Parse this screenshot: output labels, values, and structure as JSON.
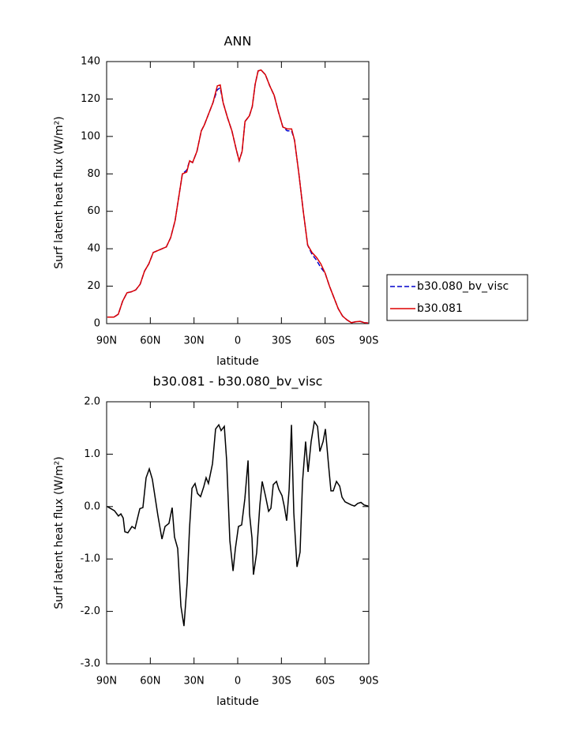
{
  "chart_data": [
    {
      "type": "line",
      "title": "ANN",
      "xlabel": "latitude",
      "ylabel": "Surf latent heat flux (W/m²)",
      "xlim": [
        90,
        -90
      ],
      "xticks": [
        {
          "value": 90,
          "label": "90N"
        },
        {
          "value": 60,
          "label": "60N"
        },
        {
          "value": 30,
          "label": "30N"
        },
        0,
        {
          "value": -30,
          "label": "30S"
        },
        {
          "value": -60,
          "label": "60S"
        },
        {
          "value": -90,
          "label": "90S"
        }
      ],
      "ylim": [
        0,
        140
      ],
      "yticks": [
        0,
        20,
        40,
        60,
        80,
        100,
        120,
        140
      ],
      "legend": "right",
      "x": [
        89.5,
        85,
        82,
        79,
        76,
        73,
        70,
        67,
        64,
        61,
        58,
        55,
        52,
        49,
        46,
        43,
        40,
        38,
        35,
        33,
        31,
        28,
        25,
        23,
        20,
        17,
        14,
        12,
        10,
        7,
        4,
        1,
        -1,
        -3,
        -5,
        -8,
        -10,
        -12,
        -14,
        -16,
        -19,
        -22,
        -25,
        -28,
        -31,
        -34,
        -37,
        -39,
        -42,
        -45,
        -48,
        -51,
        -54,
        -57,
        -60,
        -63,
        -66,
        -69,
        -72,
        -75,
        -78,
        -81,
        -84,
        -87,
        -89.5
      ],
      "series": [
        {
          "name": "b30.080_bv_visc",
          "color": "#0000cc",
          "dash": true,
          "values": [
            3.5,
            3.5,
            5,
            12,
            16.5,
            17,
            18,
            21,
            28,
            32,
            38,
            39,
            40,
            41,
            46,
            55,
            70,
            80,
            82,
            87,
            86,
            92,
            103,
            106,
            112,
            118,
            125,
            126,
            118,
            110,
            103,
            93,
            87,
            92,
            108,
            111,
            116,
            128,
            135,
            135.5,
            133,
            127,
            122,
            113,
            105,
            103,
            103,
            98,
            80,
            60,
            42,
            37,
            34,
            30,
            27,
            20,
            14,
            8,
            4,
            2,
            0.5,
            1,
            1.2,
            0.5,
            0.3
          ]
        },
        {
          "name": "b30.081",
          "color": "#dd0000",
          "dash": false,
          "values": [
            3.5,
            3.5,
            5,
            12,
            16.5,
            17,
            18,
            21,
            28,
            32,
            38,
            39,
            40,
            41,
            46,
            55,
            70,
            80,
            81,
            87,
            86,
            92,
            103,
            106,
            112,
            118,
            127,
            127.5,
            118,
            110,
            103,
            93,
            87,
            92,
            108,
            111,
            116,
            128,
            135,
            135.5,
            133,
            127,
            122,
            113,
            105,
            104,
            104,
            98,
            80,
            60,
            42,
            38,
            35.5,
            32,
            27,
            20,
            14,
            8,
            4,
            2,
            0.5,
            1,
            1.2,
            0.5,
            0.3
          ]
        }
      ]
    },
    {
      "type": "line",
      "title": "b30.081 - b30.080_bv_visc",
      "xlabel": "latitude",
      "ylabel": "Surf latent heat flux (W/m²)",
      "xlim": [
        90,
        -90
      ],
      "xticks": [
        {
          "value": 90,
          "label": "90N"
        },
        {
          "value": 60,
          "label": "60N"
        },
        {
          "value": 30,
          "label": "30N"
        },
        0,
        {
          "value": -30,
          "label": "30S"
        },
        {
          "value": -60,
          "label": "60S"
        },
        {
          "value": -90,
          "label": "90S"
        }
      ],
      "ylim": [
        -3,
        2
      ],
      "yticks": [
        {
          "value": 2,
          "label": "2.0"
        },
        {
          "value": 1,
          "label": "1.0"
        },
        {
          "value": 0,
          "label": "0.0"
        },
        {
          "value": -1,
          "label": "-1.0"
        },
        {
          "value": -2,
          "label": "-2.0"
        },
        {
          "value": -3,
          "label": "-3.0"
        }
      ],
      "color": "#000000",
      "x": [
        89.5,
        84.6,
        81.9,
        80.2,
        78.6,
        77.5,
        75.4,
        72.6,
        70.5,
        67.2,
        65.1,
        62.9,
        60.7,
        58.6,
        56.4,
        54.8,
        52.0,
        49.9,
        47.2,
        45.0,
        43.4,
        41.2,
        39.0,
        36.9,
        34.7,
        33.1,
        31.4,
        29.3,
        27.6,
        25.5,
        23.3,
        21.7,
        20.1,
        17.3,
        15.2,
        13.0,
        11.4,
        9.2,
        7.6,
        5.4,
        3.2,
        1.6,
        -0.5,
        -2.7,
        -4.9,
        -7.1,
        -8.1,
        -9.8,
        -10.8,
        -13.0,
        -15.2,
        -16.8,
        -19.0,
        -21.2,
        -22.8,
        -24.4,
        -26.6,
        -28.2,
        -30.4,
        -32.0,
        -33.6,
        -35.3,
        -36.9,
        -38.5,
        -40.7,
        -42.8,
        -44.5,
        -46.6,
        -48.3,
        -50.4,
        -52.6,
        -54.8,
        -56.4,
        -58.6,
        -60.2,
        -62.4,
        -64.0,
        -65.6,
        -67.8,
        -70.0,
        -71.6,
        -73.7,
        -75.9,
        -78.1,
        -80.2,
        -82.4,
        -84.6,
        -86.8,
        -89.5
      ],
      "values": [
        0,
        -0.08,
        -0.18,
        -0.14,
        -0.22,
        -0.48,
        -0.5,
        -0.38,
        -0.42,
        -0.04,
        -0.02,
        0.55,
        0.72,
        0.52,
        0.12,
        -0.17,
        -0.62,
        -0.38,
        -0.32,
        -0.02,
        -0.58,
        -0.8,
        -1.9,
        -2.28,
        -1.45,
        -0.42,
        0.35,
        0.44,
        0.25,
        0.19,
        0.38,
        0.55,
        0.44,
        0.82,
        1.48,
        1.56,
        1.45,
        1.53,
        0.88,
        -0.65,
        -1.23,
        -0.8,
        -0.38,
        -0.35,
        0.15,
        0.88,
        -0.14,
        -0.6,
        -1.3,
        -0.88,
        0.03,
        0.48,
        0.21,
        -0.09,
        -0.03,
        0.42,
        0.48,
        0.33,
        0.21,
        0,
        -0.27,
        0.33,
        1.56,
        -0.12,
        -1.15,
        -0.87,
        0.48,
        1.24,
        0.66,
        1.24,
        1.62,
        1.53,
        1.05,
        1.24,
        1.48,
        0.78,
        0.3,
        0.3,
        0.48,
        0.39,
        0.18,
        0.09,
        0.06,
        0.03,
        0.01,
        0.06,
        0.08,
        0.03,
        0.01
      ]
    }
  ]
}
